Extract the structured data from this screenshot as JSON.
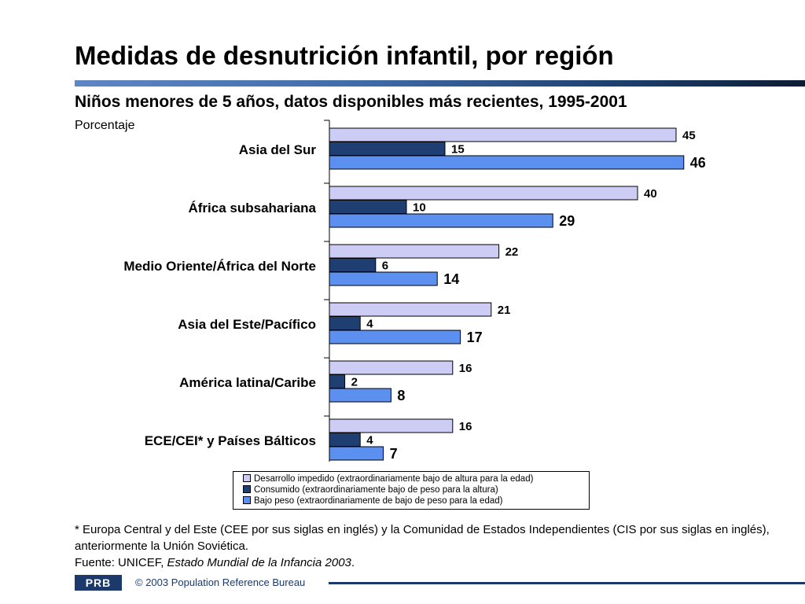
{
  "title": "Medidas de desnutrición infantil, por región",
  "subtitle": "Niños menores de 5 años, datos disponibles más recientes, 1995-2001",
  "unit_label": "Porcentaje",
  "colors": {
    "title_rule": "#3f6aa8",
    "footer": "#1b3a6b"
  },
  "chart_data": {
    "type": "bar",
    "orientation": "horizontal",
    "categories": [
      "Asia del Sur",
      "África subsahariana",
      "Medio Oriente/África del Norte",
      "Asia del Este/Pacífico",
      "América latina/Caribe",
      "ECE/CEI* y Países Bálticos"
    ],
    "series": [
      {
        "name": "Desarrollo impedido (extraordinariamente bajo de altura para la edad)",
        "color": "#ccccf4",
        "values": [
          45,
          40,
          22,
          21,
          16,
          16
        ]
      },
      {
        "name": "Consumido (extraordinariamente bajo de peso para la altura)",
        "color": "#1f3f73",
        "values": [
          15,
          10,
          6,
          4,
          2,
          4
        ]
      },
      {
        "name": "Bajo peso (extraordinariamente de bajo de peso para la edad)",
        "color": "#5b8ff0",
        "values": [
          46,
          29,
          14,
          17,
          8,
          7
        ]
      }
    ],
    "xlim": [
      0,
      50
    ],
    "legend_position": "bottom",
    "grid": false
  },
  "notes": {
    "footnote": "* Europa Central y del Este (CEE por sus siglas en inglés) y la Comunidad de Estados Independientes (CIS por sus siglas en inglés), anteriormente la Unión Soviética.",
    "source_prefix": "Fuente: UNICEF, ",
    "source_title": "Estado Mundial de la Infancia 2003",
    "source_suffix": "."
  },
  "footer": {
    "logo_text": "PRB",
    "copyright": "© 2003 Population Reference Bureau"
  }
}
